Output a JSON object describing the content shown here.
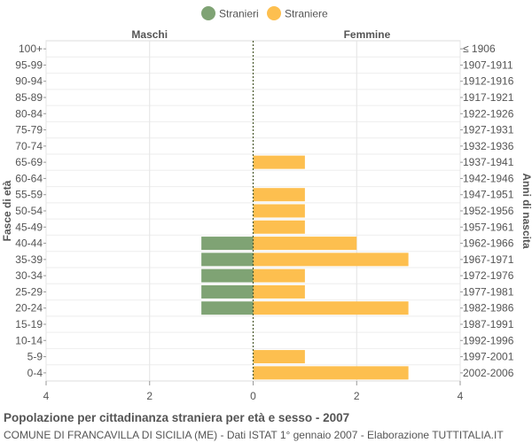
{
  "chart_data": {
    "type": "bar",
    "orientation": "horizontal-pyramid",
    "legend": {
      "position": "top-center",
      "entries": [
        {
          "label": "Stranieri",
          "color": "#7fa374"
        },
        {
          "label": "Straniere",
          "color": "#fdbf4f"
        }
      ]
    },
    "left_header": "Maschi",
    "right_header": "Femmine",
    "ylabel_left": "Fasce di età",
    "ylabel_right": "Anni di nascita",
    "xlim": [
      -4,
      4
    ],
    "xticks": [
      "4",
      "2",
      "0",
      "2",
      "4"
    ],
    "grid": true,
    "categories": [
      "100+",
      "95-99",
      "90-94",
      "85-89",
      "80-84",
      "75-79",
      "70-74",
      "65-69",
      "60-64",
      "55-59",
      "50-54",
      "45-49",
      "40-44",
      "35-39",
      "30-34",
      "25-29",
      "20-24",
      "15-19",
      "10-14",
      "5-9",
      "0-4"
    ],
    "birth_years": [
      "≤ 1906",
      "1907-1911",
      "1912-1916",
      "1917-1921",
      "1922-1926",
      "1927-1931",
      "1932-1936",
      "1937-1941",
      "1942-1946",
      "1947-1951",
      "1952-1956",
      "1957-1961",
      "1962-1966",
      "1967-1971",
      "1972-1976",
      "1977-1981",
      "1982-1986",
      "1987-1991",
      "1992-1996",
      "1997-2001",
      "2002-2006"
    ],
    "series": [
      {
        "name": "Stranieri",
        "color": "#7fa374",
        "values": [
          0,
          0,
          0,
          0,
          0,
          0,
          0,
          0,
          0,
          0,
          0,
          0,
          1,
          1,
          1,
          1,
          1,
          0,
          0,
          0,
          0
        ]
      },
      {
        "name": "Straniere",
        "color": "#fdbf4f",
        "values": [
          0,
          0,
          0,
          0,
          0,
          0,
          0,
          1,
          0,
          1,
          1,
          1,
          2,
          3,
          1,
          1,
          3,
          0,
          0,
          1,
          3
        ]
      }
    ]
  },
  "footer": {
    "title": "Popolazione per cittadinanza straniera per età e sesso - 2007",
    "subtitle": "COMUNE DI FRANCAVILLA DI SICILIA (ME) - Dati ISTAT 1° gennaio 2007 - Elaborazione TUTTITALIA.IT"
  }
}
